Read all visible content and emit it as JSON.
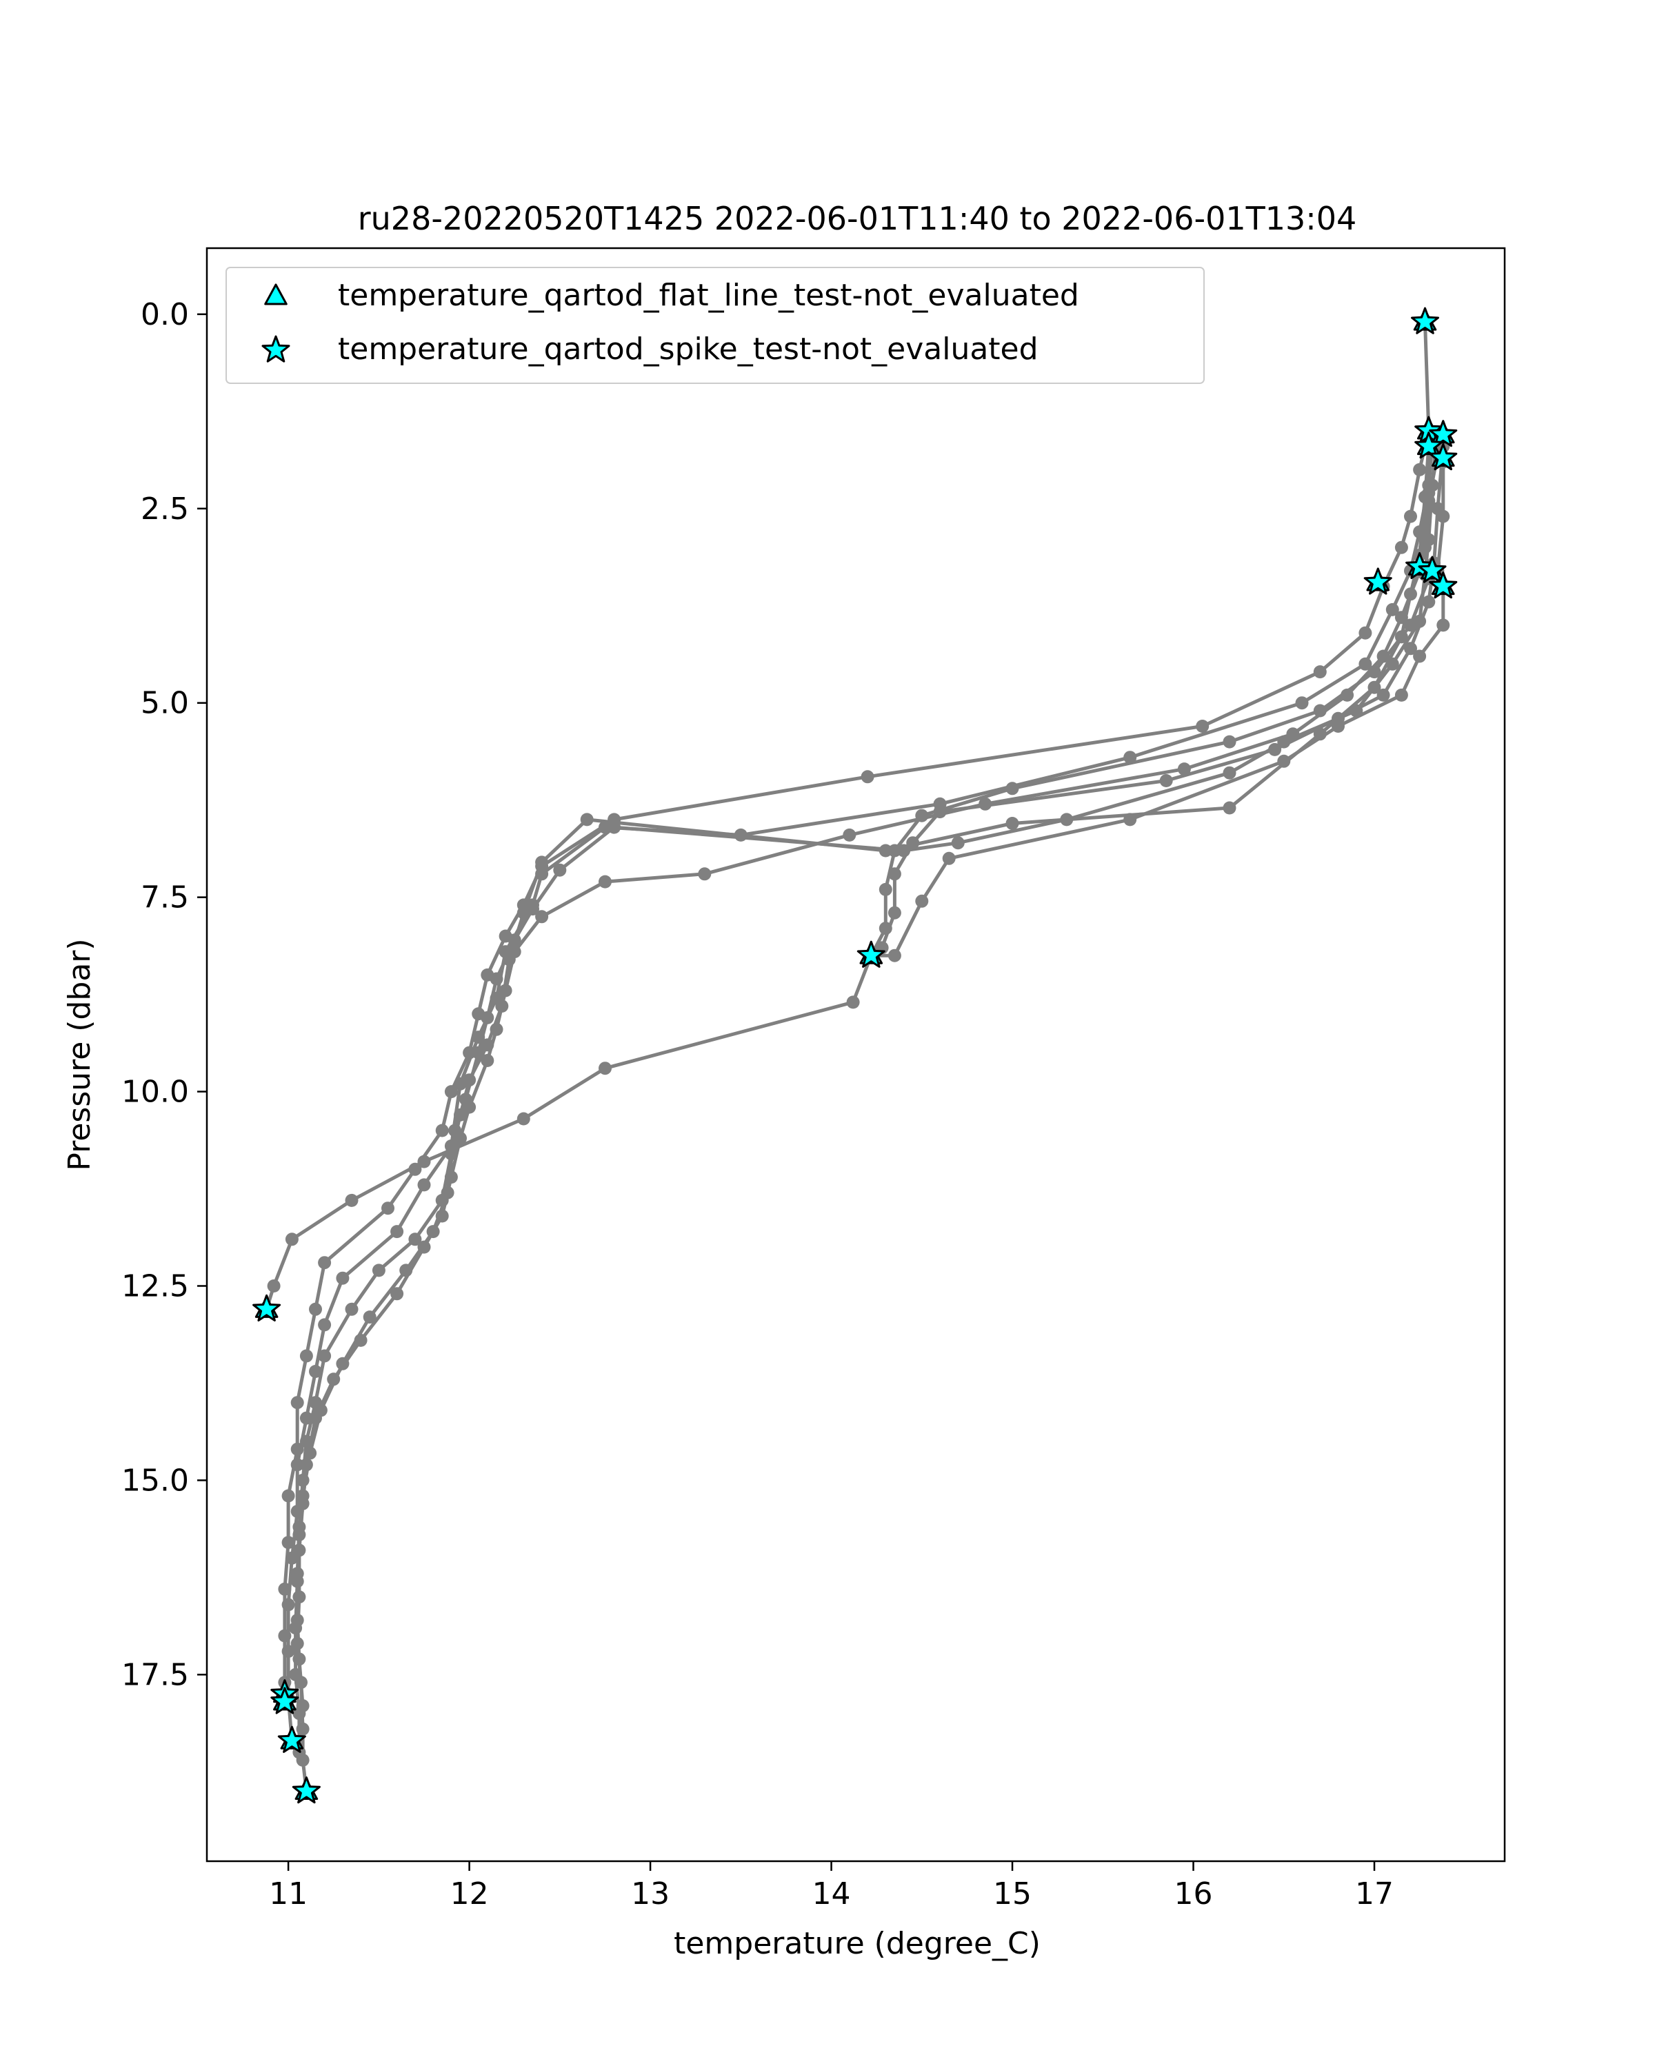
{
  "chart_data": {
    "type": "line",
    "title": "ru28-20220520T1425 2022-06-01T11:40 to 2022-06-01T13:04",
    "xlabel": "temperature (degree_C)",
    "ylabel": "Pressure (dbar)",
    "xlim": [
      10.55,
      17.72
    ],
    "ylim": [
      19.9,
      -0.85
    ],
    "y_inverted": true,
    "xticks": [
      11,
      12,
      13,
      14,
      15,
      16,
      17
    ],
    "xtick_labels": [
      "11",
      "12",
      "13",
      "14",
      "15",
      "16",
      "17"
    ],
    "yticks": [
      0.0,
      2.5,
      5.0,
      7.5,
      10.0,
      12.5,
      15.0,
      17.5
    ],
    "ytick_labels": [
      "0.0",
      "2.5",
      "5.0",
      "7.5",
      "10.0",
      "12.5",
      "15.0",
      "17.5"
    ],
    "grid": false,
    "legend_position": "top-left",
    "legend": [
      {
        "label": "temperature_qartod_flat_line_test-not_evaluated",
        "marker": "triangle",
        "color": "#00ffff"
      },
      {
        "label": "temperature_qartod_spike_test-not_evaluated",
        "marker": "star",
        "color": "#00ffff"
      }
    ],
    "profile_color": "#808080",
    "series": [
      {
        "points": [
          [
            17.28,
            0.1
          ],
          [
            17.3,
            1.5
          ],
          [
            17.25,
            2.0
          ],
          [
            17.2,
            2.6
          ],
          [
            17.15,
            3.0
          ],
          [
            17.05,
            3.5
          ],
          [
            16.95,
            4.1
          ],
          [
            16.7,
            4.6
          ],
          [
            16.05,
            5.3
          ],
          [
            14.2,
            5.95
          ],
          [
            12.8,
            6.5
          ],
          [
            12.4,
            7.1
          ],
          [
            12.3,
            7.6
          ],
          [
            12.2,
            8.0
          ],
          [
            12.1,
            8.5
          ],
          [
            12.05,
            9.0
          ],
          [
            12.0,
            9.5
          ],
          [
            11.9,
            10.0
          ],
          [
            11.85,
            10.5
          ],
          [
            11.7,
            11.0
          ],
          [
            11.55,
            11.5
          ],
          [
            11.2,
            12.2
          ],
          [
            11.15,
            12.8
          ],
          [
            11.1,
            13.4
          ],
          [
            11.05,
            14.0
          ],
          [
            11.05,
            14.6
          ],
          [
            11.0,
            15.2
          ],
          [
            11.0,
            15.8
          ],
          [
            10.98,
            16.4
          ],
          [
            10.98,
            17.0
          ],
          [
            10.98,
            17.6
          ],
          [
            10.98,
            17.85
          ]
        ]
      },
      {
        "points": [
          [
            17.32,
            1.6
          ],
          [
            17.3,
            2.2
          ],
          [
            17.25,
            2.8
          ],
          [
            17.2,
            3.3
          ],
          [
            17.1,
            3.8
          ],
          [
            16.95,
            4.5
          ],
          [
            16.6,
            5.0
          ],
          [
            15.65,
            5.7
          ],
          [
            14.6,
            6.3
          ],
          [
            13.5,
            6.7
          ],
          [
            12.75,
            6.6
          ],
          [
            12.4,
            7.2
          ],
          [
            12.35,
            7.6
          ],
          [
            12.2,
            8.2
          ],
          [
            12.15,
            8.8
          ],
          [
            12.05,
            9.3
          ],
          [
            11.95,
            9.9
          ],
          [
            11.9,
            10.7
          ],
          [
            11.75,
            11.2
          ],
          [
            11.6,
            11.8
          ],
          [
            11.3,
            12.4
          ],
          [
            11.2,
            13.0
          ],
          [
            11.15,
            13.6
          ],
          [
            11.1,
            14.2
          ],
          [
            11.05,
            14.8
          ],
          [
            11.05,
            15.4
          ],
          [
            11.02,
            16.0
          ],
          [
            11.0,
            16.6
          ],
          [
            11.0,
            17.2
          ],
          [
            11.0,
            17.8
          ],
          [
            11.02,
            18.35
          ]
        ]
      },
      {
        "points": [
          [
            17.35,
            1.8
          ],
          [
            17.3,
            2.4
          ],
          [
            17.28,
            3.0
          ],
          [
            17.3,
            3.4
          ],
          [
            17.2,
            4.0
          ],
          [
            17.0,
            4.6
          ],
          [
            16.7,
            5.1
          ],
          [
            16.2,
            5.5
          ],
          [
            15.0,
            6.1
          ],
          [
            14.5,
            6.45
          ],
          [
            14.35,
            6.9
          ],
          [
            14.3,
            7.4
          ],
          [
            14.3,
            7.9
          ],
          [
            14.22,
            8.25
          ],
          [
            14.12,
            8.85
          ],
          [
            12.75,
            9.7
          ],
          [
            12.3,
            10.35
          ],
          [
            11.75,
            10.9
          ],
          [
            11.35,
            11.4
          ],
          [
            11.02,
            11.9
          ],
          [
            10.92,
            12.5
          ],
          [
            10.88,
            12.8
          ]
        ]
      },
      {
        "points": [
          [
            17.38,
            1.7
          ],
          [
            17.35,
            2.5
          ],
          [
            17.33,
            3.2
          ],
          [
            17.3,
            3.7
          ],
          [
            17.2,
            4.3
          ],
          [
            17.05,
            4.9
          ],
          [
            16.8,
            5.2
          ],
          [
            16.45,
            5.6
          ],
          [
            15.85,
            6.0
          ],
          [
            14.6,
            6.4
          ],
          [
            14.45,
            6.8
          ],
          [
            14.35,
            7.2
          ],
          [
            14.35,
            7.7
          ],
          [
            14.28,
            8.15
          ],
          [
            14.22,
            8.25
          ]
        ]
      },
      {
        "points": [
          [
            17.38,
            1.9
          ],
          [
            17.38,
            2.6
          ],
          [
            17.35,
            3.3
          ],
          [
            17.38,
            3.5
          ],
          [
            17.38,
            4.0
          ],
          [
            17.25,
            4.4
          ],
          [
            17.15,
            4.9
          ],
          [
            16.8,
            5.3
          ],
          [
            16.5,
            5.75
          ],
          [
            15.65,
            6.5
          ],
          [
            14.65,
            7.0
          ],
          [
            14.5,
            7.55
          ],
          [
            14.35,
            8.25
          ],
          [
            14.22,
            8.25
          ]
        ]
      },
      {
        "points": [
          [
            17.32,
            1.55
          ],
          [
            17.3,
            2.3
          ],
          [
            17.26,
            3.25
          ],
          [
            17.15,
            3.9
          ],
          [
            17.05,
            4.4
          ],
          [
            16.85,
            4.9
          ],
          [
            16.55,
            5.4
          ],
          [
            15.95,
            5.85
          ],
          [
            14.85,
            6.3
          ],
          [
            14.1,
            6.7
          ],
          [
            13.3,
            7.2
          ],
          [
            12.75,
            7.3
          ],
          [
            12.4,
            7.75
          ],
          [
            12.25,
            8.2
          ],
          [
            12.2,
            8.7
          ],
          [
            12.15,
            9.2
          ],
          [
            12.1,
            9.6
          ],
          [
            12.0,
            10.2
          ],
          [
            11.95,
            10.6
          ],
          [
            11.9,
            11.1
          ],
          [
            11.85,
            11.6
          ],
          [
            11.75,
            12.0
          ],
          [
            11.6,
            12.6
          ],
          [
            11.4,
            13.2
          ],
          [
            11.25,
            13.7
          ],
          [
            11.15,
            14.2
          ],
          [
            11.1,
            14.8
          ],
          [
            11.08,
            15.3
          ],
          [
            11.06,
            15.9
          ],
          [
            11.06,
            16.5
          ],
          [
            11.05,
            17.1
          ],
          [
            11.07,
            17.6
          ],
          [
            11.08,
            18.2
          ],
          [
            11.08,
            18.6
          ],
          [
            11.1,
            19.0
          ]
        ]
      },
      {
        "points": [
          [
            17.34,
            1.65
          ],
          [
            17.32,
            2.2
          ],
          [
            17.3,
            2.9
          ],
          [
            17.28,
            3.35
          ],
          [
            17.25,
            3.95
          ],
          [
            17.1,
            4.5
          ],
          [
            16.9,
            5.1
          ],
          [
            16.5,
            5.5
          ],
          [
            16.2,
            5.9
          ],
          [
            15.3,
            6.5
          ],
          [
            14.7,
            6.8
          ],
          [
            14.4,
            6.9
          ],
          [
            12.8,
            6.6
          ],
          [
            12.5,
            7.15
          ],
          [
            12.35,
            7.65
          ],
          [
            12.25,
            8.05
          ],
          [
            12.15,
            8.55
          ],
          [
            12.1,
            9.05
          ],
          [
            12.05,
            9.5
          ],
          [
            11.98,
            10.1
          ],
          [
            11.92,
            10.5
          ],
          [
            11.88,
            11.3
          ],
          [
            11.8,
            11.8
          ],
          [
            11.65,
            12.3
          ],
          [
            11.45,
            12.9
          ],
          [
            11.3,
            13.5
          ],
          [
            11.18,
            14.1
          ],
          [
            11.12,
            14.65
          ],
          [
            11.08,
            15.2
          ],
          [
            11.06,
            15.7
          ],
          [
            11.05,
            16.3
          ],
          [
            11.04,
            16.9
          ],
          [
            11.04,
            17.5
          ],
          [
            11.06,
            18.0
          ],
          [
            11.06,
            18.5
          ]
        ]
      },
      {
        "points": [
          [
            17.3,
            1.7
          ],
          [
            17.28,
            2.35
          ],
          [
            17.25,
            3.1
          ],
          [
            17.2,
            3.6
          ],
          [
            17.15,
            4.15
          ],
          [
            17.0,
            4.8
          ],
          [
            16.7,
            5.4
          ],
          [
            16.2,
            6.35
          ],
          [
            15.0,
            6.55
          ],
          [
            14.3,
            6.9
          ],
          [
            12.65,
            6.5
          ],
          [
            12.4,
            7.05
          ],
          [
            12.3,
            7.7
          ],
          [
            12.22,
            8.3
          ],
          [
            12.18,
            8.9
          ],
          [
            12.1,
            9.4
          ],
          [
            12.0,
            9.85
          ],
          [
            11.95,
            10.3
          ],
          [
            11.9,
            10.8
          ],
          [
            11.85,
            11.4
          ],
          [
            11.7,
            11.9
          ],
          [
            11.5,
            12.3
          ],
          [
            11.35,
            12.8
          ],
          [
            11.2,
            13.4
          ],
          [
            11.15,
            14.0
          ],
          [
            11.1,
            14.5
          ],
          [
            11.08,
            15.0
          ],
          [
            11.06,
            15.6
          ],
          [
            11.05,
            16.2
          ],
          [
            11.05,
            16.8
          ],
          [
            11.06,
            17.3
          ],
          [
            11.08,
            17.9
          ]
        ]
      }
    ],
    "flag_points": [
      [
        17.28,
        0.1
      ],
      [
        17.3,
        1.5
      ],
      [
        17.38,
        1.55
      ],
      [
        17.3,
        1.7
      ],
      [
        17.38,
        1.85
      ],
      [
        17.25,
        3.25
      ],
      [
        17.32,
        3.3
      ],
      [
        17.02,
        3.45
      ],
      [
        17.38,
        3.5
      ],
      [
        14.22,
        8.25
      ],
      [
        10.88,
        12.8
      ],
      [
        10.98,
        17.75
      ],
      [
        10.98,
        17.85
      ],
      [
        11.02,
        18.35
      ],
      [
        11.1,
        19.0
      ]
    ]
  }
}
